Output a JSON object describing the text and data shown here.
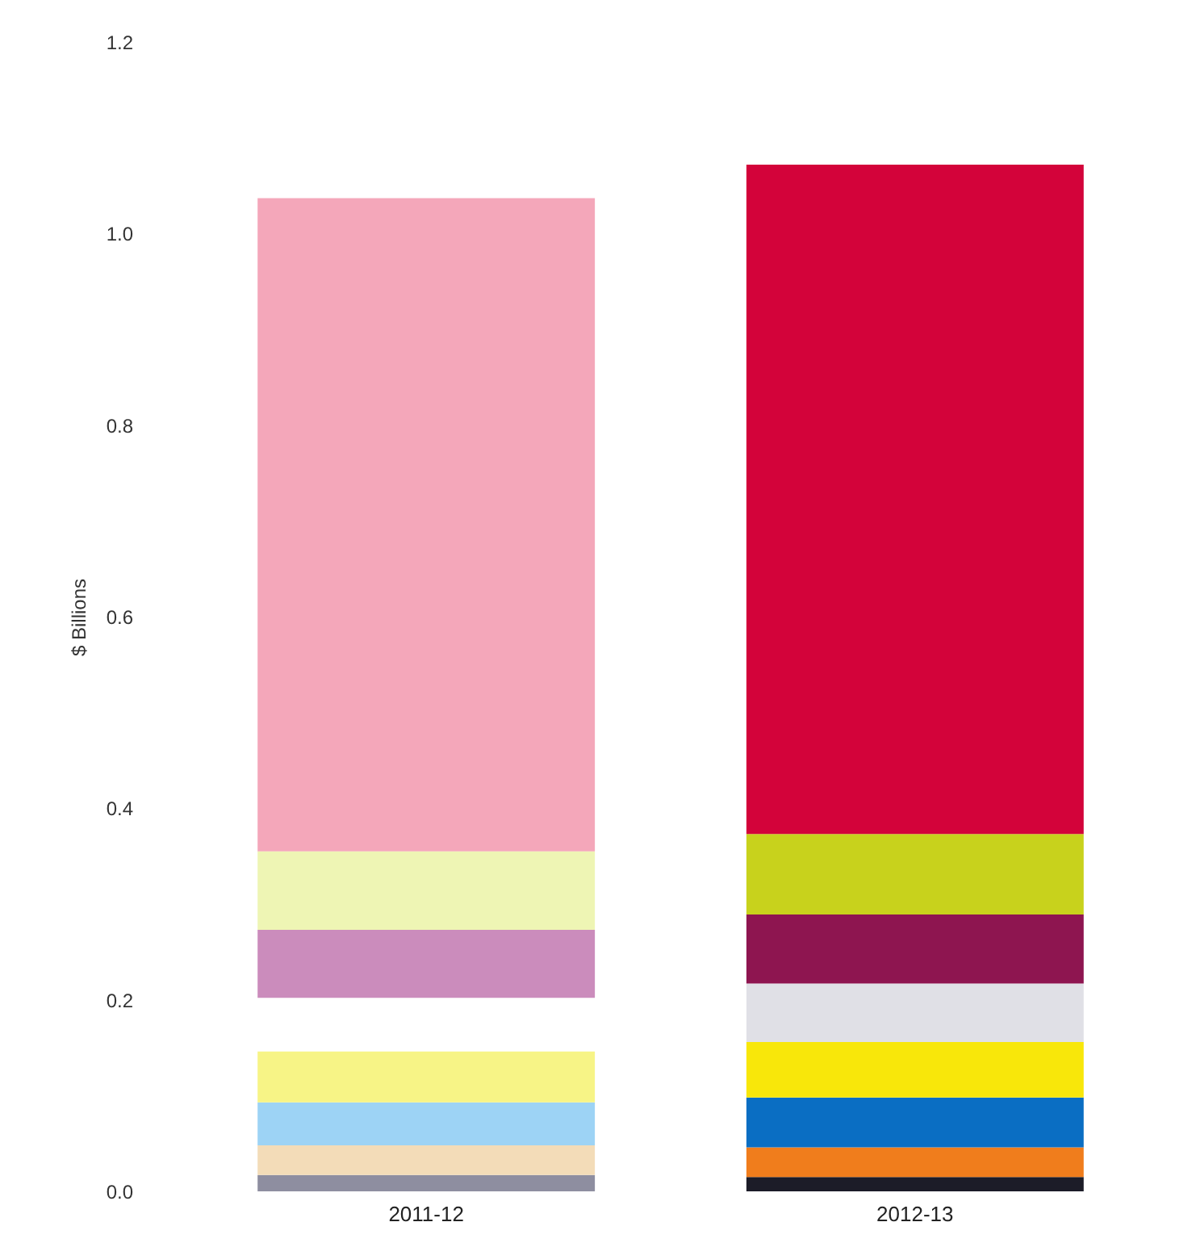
{
  "chart_data": {
    "type": "bar",
    "ylabel": "$ Billions",
    "categories": [
      "2011-12",
      "2012-13"
    ],
    "ylim": [
      0,
      1.2
    ],
    "yticks": [
      {
        "value": 0,
        "label": "0.0"
      },
      0.2,
      0.4,
      0.6,
      0.8,
      {
        "value": 1,
        "label": "1.0"
      },
      1.2
    ],
    "grid": false,
    "series": [
      {
        "colors": [
          "#8e8ea0",
          "#1c1c28"
        ],
        "base": [
          0,
          0
        ],
        "values": [
          0.017,
          0.015
        ]
      },
      {
        "colors": [
          "#f3dcb8",
          "#f07d1c"
        ],
        "base": [
          0.017,
          0.015
        ],
        "values": [
          0.031,
          0.031
        ]
      },
      {
        "colors": [
          "#9dd3f5",
          "#0a6ec3"
        ],
        "base": [
          0.048,
          0.046
        ],
        "values": [
          0.045,
          0.052
        ]
      },
      {
        "colors": [
          "#f7f486",
          "#f8e70a"
        ],
        "base": [
          0.093,
          0.098
        ],
        "values": [
          0.053,
          0.058
        ]
      },
      {
        "colors": [
          null,
          "#e0e0e6"
        ],
        "base": [
          null,
          0.156
        ],
        "values": [
          null,
          0.061
        ]
      },
      {
        "colors": [
          "#cb8cbc",
          "#8e1550"
        ],
        "base": [
          0.202,
          0.217
        ],
        "values": [
          0.071,
          0.072
        ]
      },
      {
        "colors": [
          "#eef5b4",
          "#c8d21c"
        ],
        "base": [
          0.273,
          0.289
        ],
        "values": [
          0.082,
          0.084
        ]
      },
      {
        "colors": [
          "#f4a7ba",
          "#d3033a"
        ],
        "base": [
          0.355,
          0.373
        ],
        "values": [
          0.682,
          0.699
        ]
      }
    ]
  }
}
